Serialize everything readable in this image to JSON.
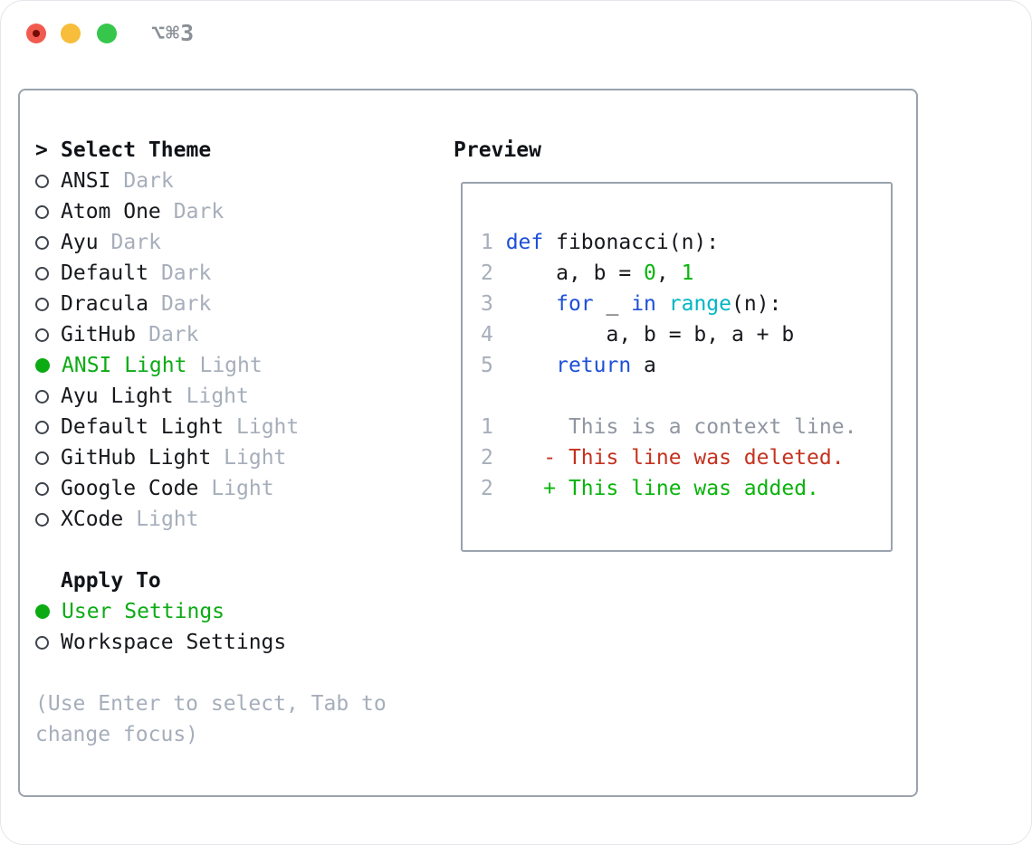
{
  "titlebar": {
    "title": "⌥⌘3"
  },
  "colors": {
    "text": "#17191d",
    "muted_gray": "#a6aebb",
    "selected_green": "#0cab14",
    "added_number_green": "#09b40c",
    "deleted_red": "#c5321f",
    "keyword_blue": "#1d4fd8",
    "function_cyan": "#00b6c2",
    "context_gray": "#8f96a1",
    "border_gray": "#9aa2ae",
    "titlebar_gray": "#8a9097",
    "traffic_red": "#f15b4f",
    "traffic_yellow": "#f7bd3b",
    "traffic_green": "#36c64c"
  },
  "panel": {
    "cursor": ">",
    "title": "Select Theme",
    "themes": [
      {
        "label": "ANSI",
        "variant": "Dark",
        "selected": false
      },
      {
        "label": "Atom One",
        "variant": "Dark",
        "selected": false
      },
      {
        "label": "Ayu",
        "variant": "Dark",
        "selected": false
      },
      {
        "label": "Default",
        "variant": "Dark",
        "selected": false
      },
      {
        "label": "Dracula",
        "variant": "Dark",
        "selected": false
      },
      {
        "label": "GitHub",
        "variant": "Dark",
        "selected": false
      },
      {
        "label": "ANSI Light",
        "variant": "Light",
        "selected": true
      },
      {
        "label": "Ayu Light",
        "variant": "Light",
        "selected": false
      },
      {
        "label": "Default Light",
        "variant": "Light",
        "selected": false
      },
      {
        "label": "GitHub Light",
        "variant": "Light",
        "selected": false
      },
      {
        "label": "Google Code",
        "variant": "Light",
        "selected": false
      },
      {
        "label": "XCode",
        "variant": "Light",
        "selected": false
      }
    ],
    "apply": {
      "header": "Apply To",
      "options": [
        {
          "label": "User Settings",
          "selected": true
        },
        {
          "label": "Workspace Settings",
          "selected": false
        }
      ]
    },
    "hint_lines": [
      "(Use Enter to select, Tab to",
      "change focus)"
    ]
  },
  "preview": {
    "header": "Preview",
    "lines": [
      {
        "name": "code-line-1",
        "num": "1",
        "tokens": [
          {
            "t": "def",
            "c": "kw"
          },
          {
            "t": " fibonacci(n):",
            "c": "fg"
          }
        ]
      },
      {
        "name": "code-line-2",
        "num": "2",
        "tokens": [
          {
            "t": "    a, b = ",
            "c": "fg"
          },
          {
            "t": "0",
            "c": "num"
          },
          {
            "t": ", ",
            "c": "fg"
          },
          {
            "t": "1",
            "c": "num"
          }
        ]
      },
      {
        "name": "code-line-3",
        "num": "3",
        "tokens": [
          {
            "t": "    ",
            "c": "fg"
          },
          {
            "t": "for",
            "c": "kw"
          },
          {
            "t": " _ ",
            "c": "fg"
          },
          {
            "t": "in",
            "c": "kw"
          },
          {
            "t": " ",
            "c": "fg"
          },
          {
            "t": "range",
            "c": "fn"
          },
          {
            "t": "(n):",
            "c": "fg"
          }
        ]
      },
      {
        "name": "code-line-4",
        "num": "4",
        "tokens": [
          {
            "t": "        a, b = b, a + b",
            "c": "fg"
          }
        ]
      },
      {
        "name": "code-line-5",
        "num": "5",
        "tokens": [
          {
            "t": "    ",
            "c": "fg"
          },
          {
            "t": "return",
            "c": "kw"
          },
          {
            "t": " a",
            "c": "fg"
          }
        ]
      },
      {
        "name": "blank-line",
        "num": "",
        "tokens": []
      },
      {
        "name": "diff-context-line",
        "num": "1",
        "tokens": [
          {
            "t": "     This is a context line.",
            "c": "ctx"
          }
        ]
      },
      {
        "name": "diff-deleted-line",
        "num": "2",
        "tokens": [
          {
            "t": "   - This line was deleted.",
            "c": "del"
          }
        ]
      },
      {
        "name": "diff-added-line",
        "num": "2",
        "tokens": [
          {
            "t": "   + This line was added.",
            "c": "add"
          }
        ]
      }
    ]
  }
}
